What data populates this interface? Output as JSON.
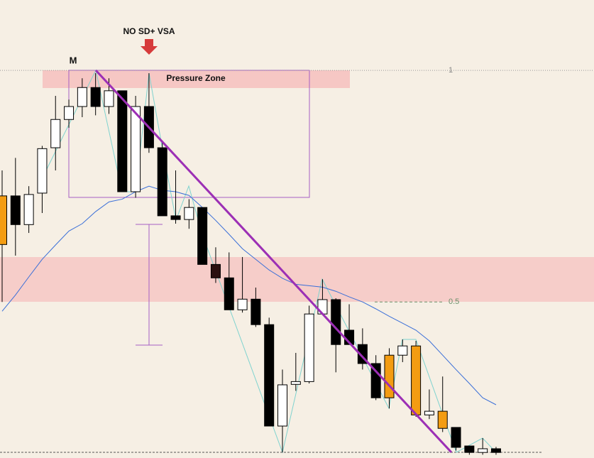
{
  "chart_data": {
    "type": "candlestick",
    "ylim": [
      0.163,
      1.152
    ],
    "yticks": [
      1,
      0.5
    ],
    "annotations": {
      "signal": "NO SD+ VSA",
      "peak": "M",
      "zone": "Pressure Zone"
    },
    "series": [
      {
        "open": [
          0.729,
          0.729,
          0.667,
          0.735,
          0.833,
          0.894,
          0.922,
          0.963,
          0.922,
          0.956,
          0.738,
          0.922,
          0.833,
          0.686,
          0.678,
          0.704,
          0.581,
          0.552,
          0.483,
          0.506,
          0.451,
          0.232,
          0.322,
          0.328,
          0.474,
          0.505,
          0.439,
          0.408,
          0.367,
          0.385,
          0.385,
          0.405,
          0.256,
          0.264,
          0.229,
          0.189,
          0.175,
          0.183
        ],
        "high": [
          0.784,
          0.811,
          0.75,
          0.837,
          0.945,
          0.937,
          0.983,
          0.994,
          0.983,
          0.956,
          0.945,
          0.994,
          0.845,
          0.784,
          0.722,
          0.704,
          0.618,
          0.607,
          0.597,
          0.531,
          0.466,
          0.354,
          0.39,
          0.492,
          0.549,
          0.508,
          0.495,
          0.443,
          0.385,
          0.4,
          0.419,
          0.416,
          0.311,
          0.339,
          0.229,
          0.189,
          0.206,
          0.187
        ],
        "low": [
          0.5,
          0.6,
          0.649,
          0.692,
          0.784,
          0.876,
          0.899,
          0.903,
          0.906,
          0.738,
          0.725,
          0.822,
          0.686,
          0.669,
          0.658,
          0.581,
          0.541,
          0.483,
          0.477,
          0.446,
          0.232,
          0.175,
          0.308,
          0.324,
          0.474,
          0.348,
          0.408,
          0.354,
          0.288,
          0.27,
          0.37,
          0.252,
          0.247,
          0.219,
          0.179,
          0.17,
          0.17,
          0.17
        ],
        "close": [
          0.624,
          0.667,
          0.732,
          0.831,
          0.894,
          0.922,
          0.963,
          0.922,
          0.956,
          0.738,
          0.922,
          0.833,
          0.686,
          0.678,
          0.704,
          0.581,
          0.552,
          0.483,
          0.506,
          0.451,
          0.232,
          0.321,
          0.328,
          0.474,
          0.505,
          0.408,
          0.408,
          0.367,
          0.293,
          0.293,
          0.405,
          0.256,
          0.264,
          0.227,
          0.186,
          0.175,
          0.183,
          0.175
        ],
        "colors": [
          "#f39c12",
          "#000000",
          "#ffffff",
          "#ffffff",
          "#ffffff",
          "#ffffff",
          "#ffffff",
          "#000000",
          "#ffffff",
          "#000000",
          "#ffffff",
          "#000000",
          "#000000",
          "#000000",
          "#ffffff",
          "#000000",
          "#2b1010",
          "#000000",
          "#ffffff",
          "#000000",
          "#000000",
          "#ffffff",
          "#ffffff",
          "#ffffff",
          "#ffffff",
          "#000000",
          "#000000",
          "#000000",
          "#000000",
          "#f39c12",
          "#ffffff",
          "#f39c12",
          "#ffffff",
          "#f39c12",
          "#000000",
          "#000000",
          "#ffffff",
          "#000000"
        ]
      }
    ],
    "lines": [
      {
        "color": "#3a6fd8",
        "values": [
          0.48,
          0.515,
          0.554,
          0.592,
          0.623,
          0.653,
          0.669,
          0.695,
          0.716,
          0.722,
          0.738,
          0.75,
          0.741,
          0.738,
          0.73,
          0.704,
          0.676,
          0.646,
          0.615,
          0.592,
          0.569,
          0.551,
          0.538,
          0.535,
          0.532,
          0.523,
          0.511,
          0.5,
          0.485,
          0.469,
          0.454,
          0.439,
          0.416,
          0.385,
          0.354,
          0.324,
          0.293,
          0.278
        ]
      }
    ]
  }
}
